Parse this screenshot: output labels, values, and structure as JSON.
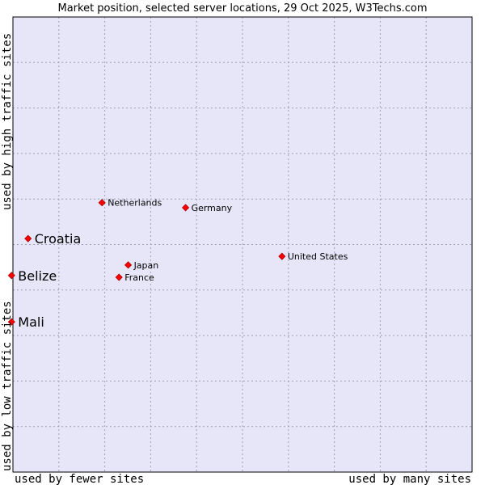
{
  "chart_data": {
    "type": "scatter",
    "title": "Market position, selected server locations, 29 Oct 2025, W3Techs.com",
    "xlabel_left": "used by fewer sites",
    "xlabel_right": "used by many sites",
    "ylabel_bottom": "used by low traffic sites",
    "ylabel_top": "used by high traffic sites",
    "xlim": [
      0,
      100
    ],
    "ylim": [
      0,
      100
    ],
    "grid": true,
    "colors": {
      "plot_bg": "#e6e6f8",
      "grid": "#a0a0b4",
      "marker": "#ff0000",
      "marker_stroke": "#aa0000",
      "border": "#000000"
    },
    "points": [
      {
        "label": "Netherlands",
        "x": 19.4,
        "y": 59.2,
        "highlight": false
      },
      {
        "label": "Germany",
        "x": 37.6,
        "y": 58.1,
        "highlight": false
      },
      {
        "label": "Croatia",
        "x": 3.3,
        "y": 51.3,
        "highlight": true
      },
      {
        "label": "United States",
        "x": 58.6,
        "y": 47.4,
        "highlight": false
      },
      {
        "label": "Japan",
        "x": 25.1,
        "y": 45.5,
        "highlight": false
      },
      {
        "label": "France",
        "x": 23.1,
        "y": 42.8,
        "highlight": false
      },
      {
        "label": "Belize",
        "x": -0.3,
        "y": 43.2,
        "highlight": true
      },
      {
        "label": "Mali",
        "x": -0.3,
        "y": 33.0,
        "highlight": true
      }
    ]
  }
}
